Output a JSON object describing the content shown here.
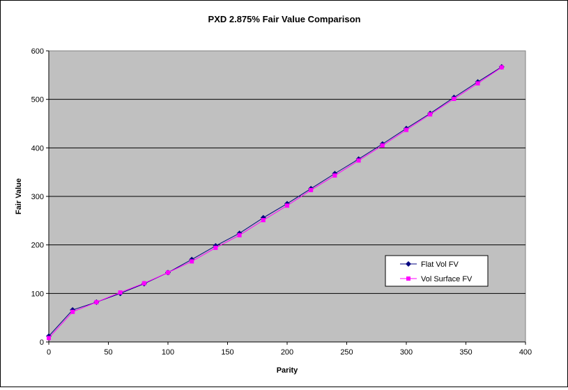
{
  "chart_data": {
    "type": "line",
    "title": "PXD 2.875% Fair Value Comparison",
    "xlabel": "Parity",
    "ylabel": "Fair Value",
    "xlim": [
      0,
      400
    ],
    "ylim": [
      0,
      600
    ],
    "xticks": [
      0,
      50,
      100,
      150,
      200,
      250,
      300,
      350,
      400
    ],
    "yticks": [
      0,
      100,
      200,
      300,
      400,
      500,
      600
    ],
    "grid": "horizontal",
    "legend_position": "lower-right",
    "plot_background": "#c0c0c0",
    "series": [
      {
        "name": "Flat Vol FV",
        "color": "#000080",
        "marker": "diamond",
        "x": [
          0,
          20,
          40,
          60,
          80,
          100,
          120,
          140,
          160,
          180,
          200,
          220,
          240,
          260,
          280,
          300,
          320,
          340,
          360,
          380
        ],
        "values": [
          12,
          66,
          82,
          100,
          120,
          143,
          170,
          198,
          224,
          256,
          285,
          316,
          347,
          377,
          408,
          440,
          471,
          504,
          536,
          567
        ]
      },
      {
        "name": "Vol Surface FV",
        "color": "#ff00ff",
        "marker": "square",
        "x": [
          0,
          20,
          40,
          60,
          80,
          100,
          120,
          140,
          160,
          180,
          200,
          220,
          240,
          260,
          280,
          300,
          320,
          340,
          360,
          380
        ],
        "values": [
          8,
          62,
          82,
          102,
          121,
          143,
          166,
          194,
          220,
          251,
          281,
          313,
          343,
          374,
          405,
          437,
          469,
          501,
          533,
          566
        ]
      }
    ]
  }
}
